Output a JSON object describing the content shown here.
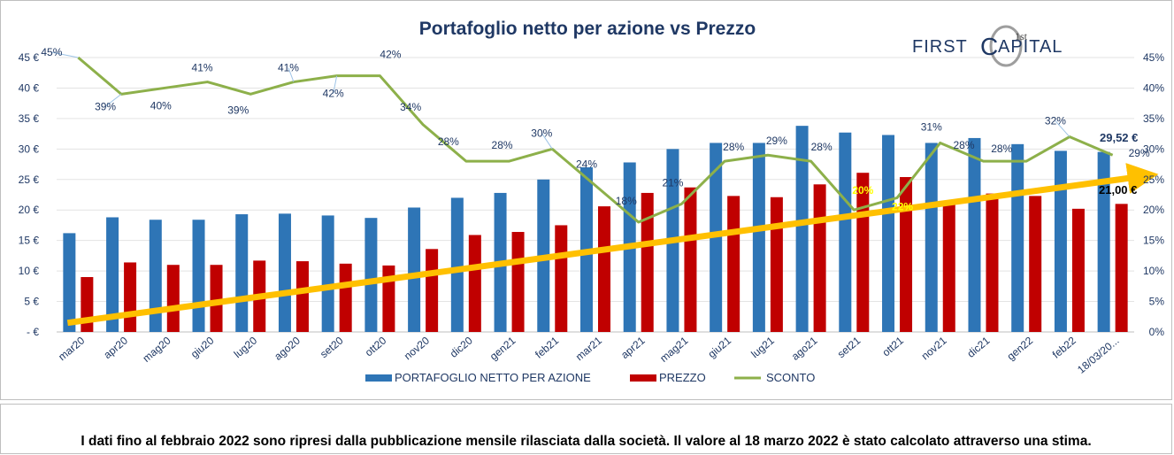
{
  "chart_data": {
    "type": "bar",
    "title": "Portafoglio netto per azione vs Prezzo",
    "categories": [
      "mar20",
      "apr20",
      "mag20",
      "giu20",
      "lug20",
      "ago20",
      "set20",
      "ott20",
      "nov20",
      "dic20",
      "gen21",
      "feb21",
      "mar21",
      "apr21",
      "mag21",
      "giu21",
      "lug21",
      "ago21",
      "set21",
      "ott21",
      "nov21",
      "dic21",
      "gen22",
      "feb22",
      "18/03/20..."
    ],
    "series": [
      {
        "name": "PORTAFOGLIO NETTO PER AZIONE",
        "kind": "bar",
        "axis": "left",
        "color": "#2e75b6",
        "values": [
          16.2,
          18.8,
          18.4,
          18.4,
          19.3,
          19.4,
          19.1,
          18.7,
          20.4,
          22.0,
          22.8,
          25.0,
          27.0,
          27.8,
          30.0,
          31.0,
          31.0,
          33.8,
          32.7,
          32.3,
          31.0,
          31.8,
          30.8,
          29.7,
          29.52
        ]
      },
      {
        "name": "PREZZO",
        "kind": "bar",
        "axis": "left",
        "color": "#c00000",
        "values": [
          9.0,
          11.4,
          11.0,
          11.0,
          11.7,
          11.6,
          11.2,
          10.9,
          13.6,
          15.9,
          16.4,
          17.5,
          20.6,
          22.8,
          23.7,
          22.3,
          22.1,
          24.2,
          26.1,
          25.4,
          20.9,
          22.7,
          22.3,
          20.2,
          21.0
        ]
      },
      {
        "name": "SCONTO",
        "kind": "line",
        "axis": "right",
        "color": "#8db04a",
        "values": [
          45,
          39,
          40,
          41,
          39,
          41,
          42,
          42,
          34,
          28,
          28,
          30,
          24,
          18,
          21,
          28,
          29,
          28,
          20,
          22,
          31,
          28,
          28,
          32,
          29
        ]
      }
    ],
    "point_labels": [
      "45%",
      "39%",
      "40%",
      "41%",
      "39%",
      "41%",
      "42%",
      "42%",
      "34%",
      "28%",
      "28%",
      "30%",
      "24%",
      "18%",
      "21%",
      "28%",
      "29%",
      "28%",
      "20%",
      "22%",
      "31%",
      "28%",
      "28%",
      "32%",
      "29%"
    ],
    "left_axis": {
      "ylim": [
        0,
        45
      ],
      "ticks": [
        "- €",
        "5 €",
        "10 €",
        "15 €",
        "20 €",
        "25 €",
        "30 €",
        "35 €",
        "40 €",
        "45 €"
      ]
    },
    "right_axis": {
      "ylim": [
        0,
        45
      ],
      "ticks": [
        "0%",
        "5%",
        "10%",
        "15%",
        "20%",
        "25%",
        "30%",
        "35%",
        "40%",
        "45%"
      ]
    },
    "trend_arrow": {
      "color": "#ffc000",
      "from": 1.5,
      "to": 25.5
    },
    "annotations": {
      "nav_last": "29,52 €",
      "price_last": "21,00 €"
    },
    "legend": {
      "position": "bottom",
      "entries": [
        "PORTAFOGLIO NETTO PER AZIONE",
        "PREZZO",
        "SCONTO"
      ]
    },
    "grid": true
  },
  "logo": {
    "brand_left": "FIRST",
    "brand_letter": "C",
    "brand_right": "APITAL",
    "superscript": "1st"
  },
  "footnote": "I dati fino al febbraio 2022 sono ripresi dalla pubblicazione mensile rilasciata dalla società. Il valore al 18 marzo 2022 è stato calcolato attraverso una stima.",
  "colors": {
    "title": "#1f3864",
    "axis_text": "#1f3864",
    "label_text": "#1f3864",
    "highlight_label": "#ffff00"
  }
}
